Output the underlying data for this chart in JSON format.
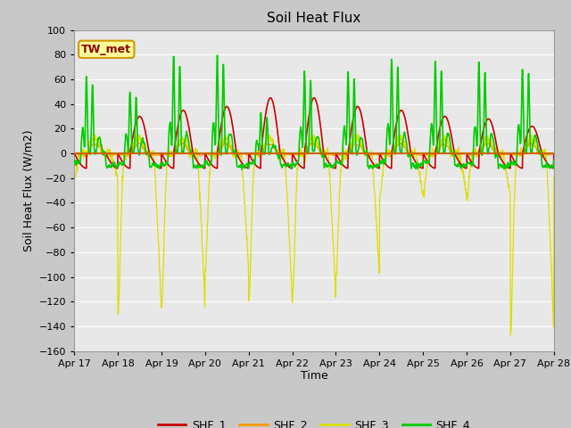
{
  "title": "Soil Heat Flux",
  "ylabel": "Soil Heat Flux (W/m2)",
  "xlabel": "Time",
  "ylim": [
    -160,
    100
  ],
  "yticks": [
    -160,
    -140,
    -120,
    -100,
    -80,
    -60,
    -40,
    -20,
    0,
    20,
    40,
    60,
    80,
    100
  ],
  "xtick_labels": [
    "Apr 17",
    "Apr 18",
    "Apr 19",
    "Apr 20",
    "Apr 21",
    "Apr 22",
    "Apr 23",
    "Apr 24",
    "Apr 25",
    "Apr 26",
    "Apr 27",
    "Apr 28"
  ],
  "colors": {
    "SHF_1": "#cc0000",
    "SHF_2": "#ff9900",
    "SHF_3": "#dddd00",
    "SHF_4": "#00cc00"
  },
  "zero_line_color": "#cc6600",
  "bg_color": "#e8e8e8",
  "grid_color": "#ffffff",
  "fig_bg": "#c8c8c8",
  "annotation_text": "TW_met",
  "annotation_color": "#8b0000",
  "annotation_bg": "#ffff99",
  "annotation_border": "#cc9900"
}
